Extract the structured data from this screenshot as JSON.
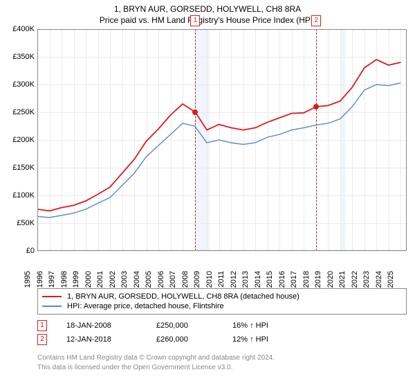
{
  "title": "1, BRYN AUR, GORSEDD, HOLYWELL, CH8 8RA",
  "subtitle": "Price paid vs. HM Land Registry's House Price Index (HPI)",
  "chart": {
    "type": "line",
    "background_color": "#ffffff",
    "grid_color": "#eaeaea",
    "border_color": "#888888",
    "shade_color": "#f0f4fb",
    "ylim": [
      0,
      400000
    ],
    "ytick_step": 50000,
    "ytick_labels": [
      "£0",
      "£50K",
      "£100K",
      "£150K",
      "£200K",
      "£250K",
      "£300K",
      "£350K",
      "£400K"
    ],
    "xlim": [
      1995,
      2025.5
    ],
    "xticks": [
      1995,
      1996,
      1997,
      1998,
      1999,
      2000,
      2001,
      2002,
      2003,
      2004,
      2005,
      2006,
      2007,
      2008,
      2009,
      2010,
      2011,
      2012,
      2013,
      2014,
      2015,
      2016,
      2017,
      2018,
      2019,
      2020,
      2021,
      2022,
      2023,
      2024,
      2025
    ],
    "shaded_ranges": [
      [
        2008.05,
        2009.2
      ],
      [
        2020.1,
        2020.4
      ]
    ],
    "markers": [
      {
        "idx": "1",
        "x": 2008.05,
        "y": 250000,
        "label_y_top": -4
      },
      {
        "idx": "2",
        "x": 2018.03,
        "y": 260000,
        "label_y_top": -4
      }
    ],
    "marker_line_color": "#e11919",
    "marker_box_border": "#e11919",
    "series": [
      {
        "name": "price_paid",
        "color": "#e11919",
        "width": 1.8,
        "points": [
          [
            1995,
            75000
          ],
          [
            1996,
            72000
          ],
          [
            1997,
            78000
          ],
          [
            1998,
            82000
          ],
          [
            1999,
            90000
          ],
          [
            2000,
            102000
          ],
          [
            2001,
            115000
          ],
          [
            2002,
            140000
          ],
          [
            2003,
            165000
          ],
          [
            2004,
            198000
          ],
          [
            2005,
            220000
          ],
          [
            2006,
            245000
          ],
          [
            2007,
            265000
          ],
          [
            2008.05,
            250000
          ],
          [
            2009,
            218000
          ],
          [
            2010,
            228000
          ],
          [
            2011,
            222000
          ],
          [
            2012,
            218000
          ],
          [
            2013,
            222000
          ],
          [
            2014,
            232000
          ],
          [
            2015,
            240000
          ],
          [
            2016,
            248000
          ],
          [
            2017,
            249000
          ],
          [
            2018.03,
            260000
          ],
          [
            2019,
            262000
          ],
          [
            2020,
            270000
          ],
          [
            2021,
            295000
          ],
          [
            2022,
            330000
          ],
          [
            2023,
            345000
          ],
          [
            2024,
            335000
          ],
          [
            2025,
            340000
          ]
        ]
      },
      {
        "name": "hpi",
        "color": "#5a86c8",
        "width": 1.4,
        "points": [
          [
            1995,
            62000
          ],
          [
            1996,
            60000
          ],
          [
            1997,
            64000
          ],
          [
            1998,
            68000
          ],
          [
            1999,
            75000
          ],
          [
            2000,
            86000
          ],
          [
            2001,
            96000
          ],
          [
            2002,
            118000
          ],
          [
            2003,
            140000
          ],
          [
            2004,
            170000
          ],
          [
            2005,
            190000
          ],
          [
            2006,
            210000
          ],
          [
            2007,
            230000
          ],
          [
            2008,
            225000
          ],
          [
            2009,
            195000
          ],
          [
            2010,
            200000
          ],
          [
            2011,
            195000
          ],
          [
            2012,
            192000
          ],
          [
            2013,
            195000
          ],
          [
            2014,
            205000
          ],
          [
            2015,
            210000
          ],
          [
            2016,
            218000
          ],
          [
            2017,
            222000
          ],
          [
            2018,
            227000
          ],
          [
            2019,
            230000
          ],
          [
            2020,
            238000
          ],
          [
            2021,
            260000
          ],
          [
            2022,
            290000
          ],
          [
            2023,
            300000
          ],
          [
            2024,
            298000
          ],
          [
            2025,
            303000
          ]
        ]
      }
    ]
  },
  "legend": {
    "items": [
      {
        "color": "#e11919",
        "label": "1, BRYN AUR, GORSEDD, HOLYWELL, CH8 8RA (detached house)"
      },
      {
        "color": "#5a86c8",
        "label": "HPI: Average price, detached house, Flintshire"
      }
    ]
  },
  "sales": [
    {
      "idx": "1",
      "date": "18-JAN-2008",
      "price": "£250,000",
      "diff": "16% ↑ HPI"
    },
    {
      "idx": "2",
      "date": "12-JAN-2018",
      "price": "£260,000",
      "diff": "12% ↑ HPI"
    }
  ],
  "footer_line1": "Contains HM Land Registry data © Crown copyright and database right 2024.",
  "footer_line2": "This data is licensed under the Open Government Licence v3.0."
}
